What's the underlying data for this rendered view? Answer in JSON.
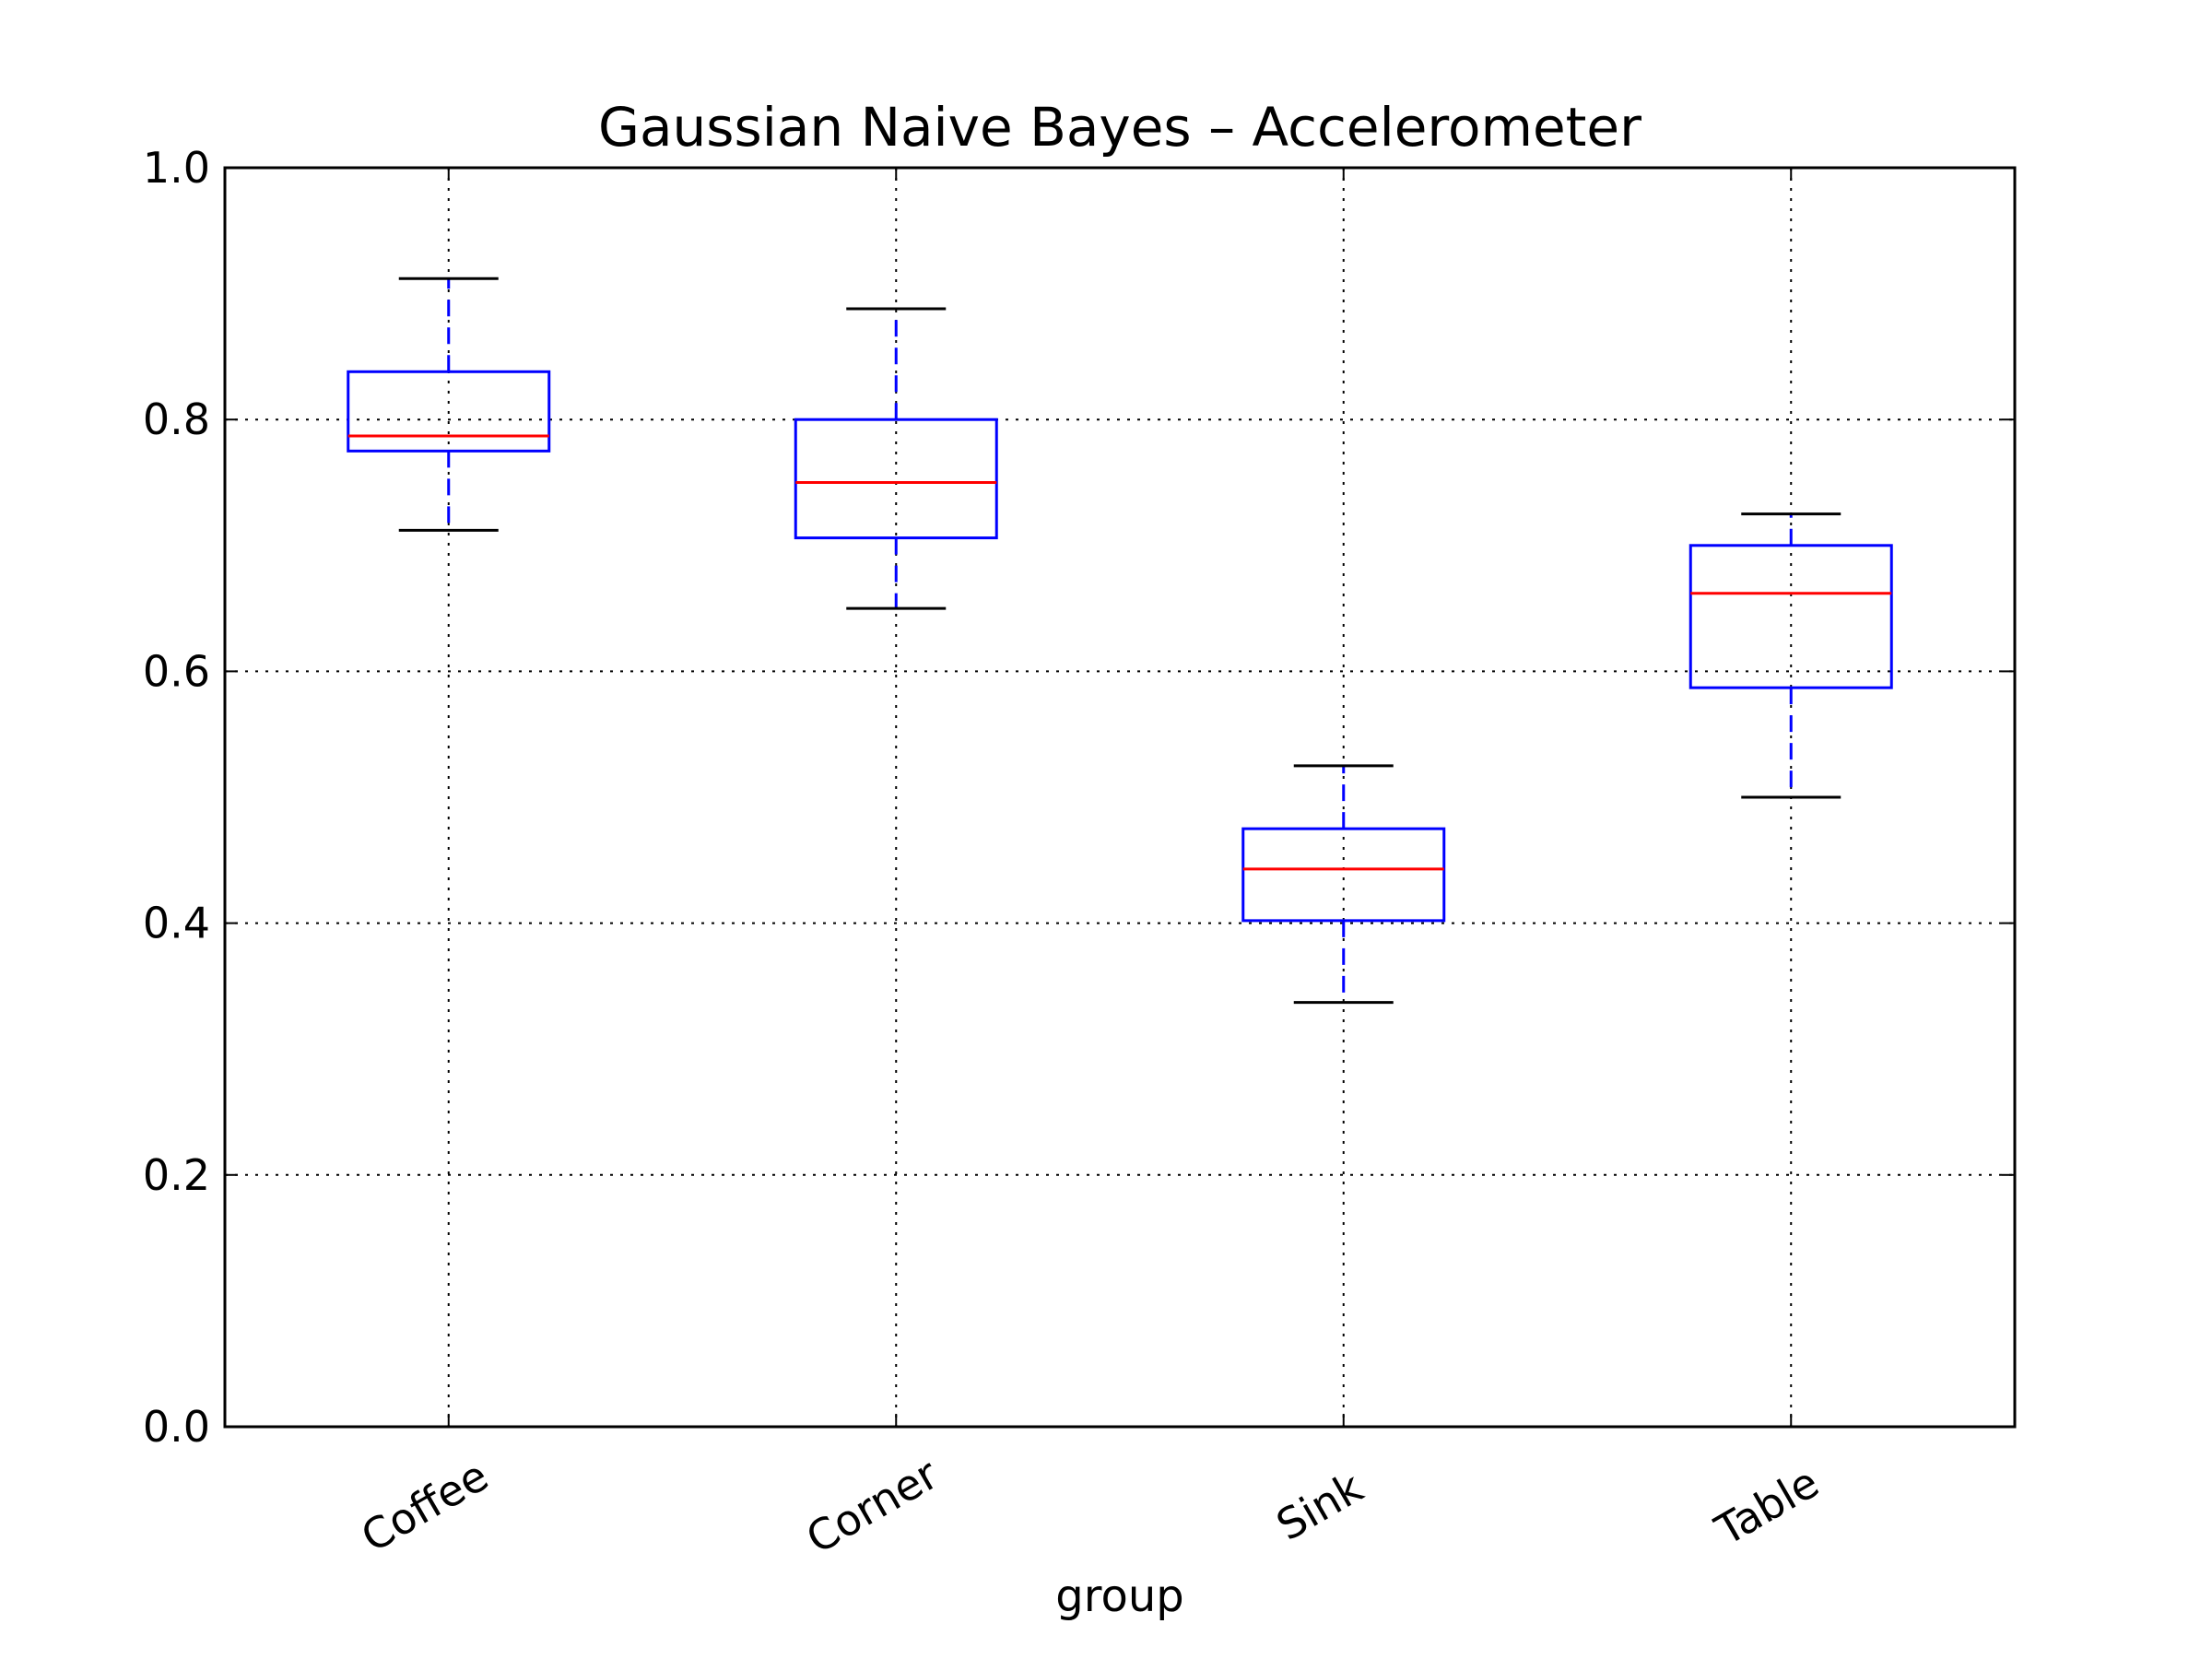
{
  "chart_data": {
    "type": "boxplot",
    "title": "Gaussian Naive Bayes – Accelerometer",
    "xlabel": "group",
    "ylabel": "",
    "categories": [
      "Coffee",
      "Corner",
      "Sink",
      "Table"
    ],
    "boxes": [
      {
        "category": "Coffee",
        "whisker_low": 0.712,
        "q1": 0.775,
        "median": 0.787,
        "q3": 0.838,
        "whisker_high": 0.912
      },
      {
        "category": "Corner",
        "whisker_low": 0.65,
        "q1": 0.706,
        "median": 0.75,
        "q3": 0.8,
        "whisker_high": 0.888
      },
      {
        "category": "Sink",
        "whisker_low": 0.337,
        "q1": 0.402,
        "median": 0.443,
        "q3": 0.475,
        "whisker_high": 0.525
      },
      {
        "category": "Table",
        "whisker_low": 0.5,
        "q1": 0.587,
        "median": 0.662,
        "q3": 0.7,
        "whisker_high": 0.725
      }
    ],
    "ylim": [
      0.0,
      1.0
    ],
    "yticks": [
      "0.0",
      "0.2",
      "0.4",
      "0.6",
      "0.8",
      "1.0"
    ],
    "grid": true,
    "colors": {
      "box": "#0000ff",
      "median": "#ff0000",
      "whisker": "#0000ff",
      "cap": "#000000",
      "grid": "#000000",
      "frame": "#000000"
    }
  }
}
